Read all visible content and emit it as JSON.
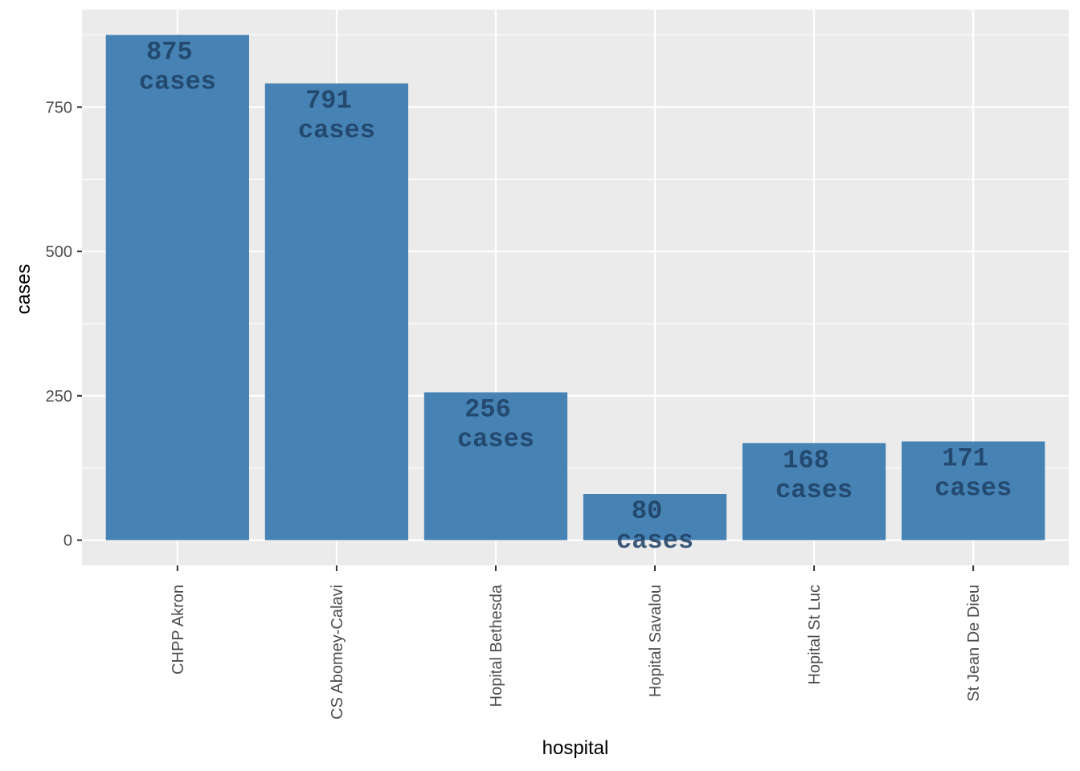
{
  "chart_data": {
    "type": "bar",
    "categories": [
      "CHPP Akron",
      "CS Abomey-Calavi",
      "Hopital Bethesda",
      "Hopital Savalou",
      "Hopital St Luc",
      "St Jean De Dieu"
    ],
    "values": [
      875,
      791,
      256,
      80,
      168,
      171
    ],
    "data_labels": [
      [
        "875",
        "cases"
      ],
      [
        "791",
        "cases"
      ],
      [
        "256",
        "cases"
      ],
      [
        "80",
        "cases"
      ],
      [
        "168",
        "cases"
      ],
      [
        "171",
        "cases"
      ]
    ],
    "title": "",
    "xlabel": "hospital",
    "ylabel": "cases",
    "yticks": [
      0,
      250,
      500,
      750
    ],
    "ylim": [
      -43.75,
      918.75
    ],
    "grid": true,
    "colors": {
      "bar": "#4682B4",
      "panel": "#EBEBEB",
      "gridline": "#FFFFFF",
      "label_text": "#1F3F63"
    }
  }
}
